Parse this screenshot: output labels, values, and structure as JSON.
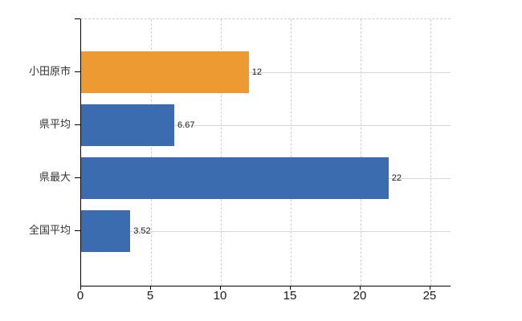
{
  "chart_data": {
    "type": "bar",
    "orientation": "horizontal",
    "categories": [
      "小田原市",
      "県平均",
      "県最大",
      "全国平均"
    ],
    "values": [
      12,
      6.67,
      22,
      3.52
    ],
    "value_labels": [
      "12",
      "6.67",
      "22",
      "3.52"
    ],
    "bar_colors": [
      "#ED9A33",
      "#3A6CAF",
      "#3A6CAF",
      "#3A6CAF"
    ],
    "highlight_color": "#ED9A33",
    "default_color": "#3A6CAF",
    "xticks": [
      0,
      5,
      10,
      15,
      20,
      25
    ],
    "xlim": [
      0,
      26.44
    ],
    "grid": true,
    "legend": false,
    "axis_color": "#000000",
    "vertical_gridline_color": "#cdd2cd",
    "horizontal_gridline_color": "#d6dad6",
    "category_label_color": "#333333",
    "tick_label_color": "#1a1a1a",
    "background_color": "#ffffff"
  }
}
